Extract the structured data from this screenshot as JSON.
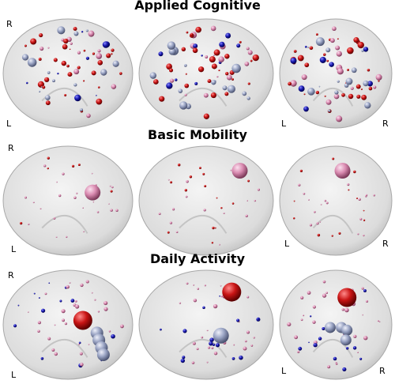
{
  "rows": [
    {
      "title": "Applied Cognitive",
      "top_view": {
        "top": "R",
        "bottom": "L"
      },
      "front_view": {
        "left": "L",
        "right": "R"
      }
    },
    {
      "title": "Basic Mobility",
      "top_view": {
        "top": "R",
        "bottom": "L"
      },
      "front_view": {
        "left": "L",
        "right": "R"
      }
    },
    {
      "title": "Daily Activity",
      "top_view": {
        "top": "R",
        "bottom": "L"
      },
      "front_view": {
        "left": "L",
        "right": "R"
      }
    }
  ]
}
